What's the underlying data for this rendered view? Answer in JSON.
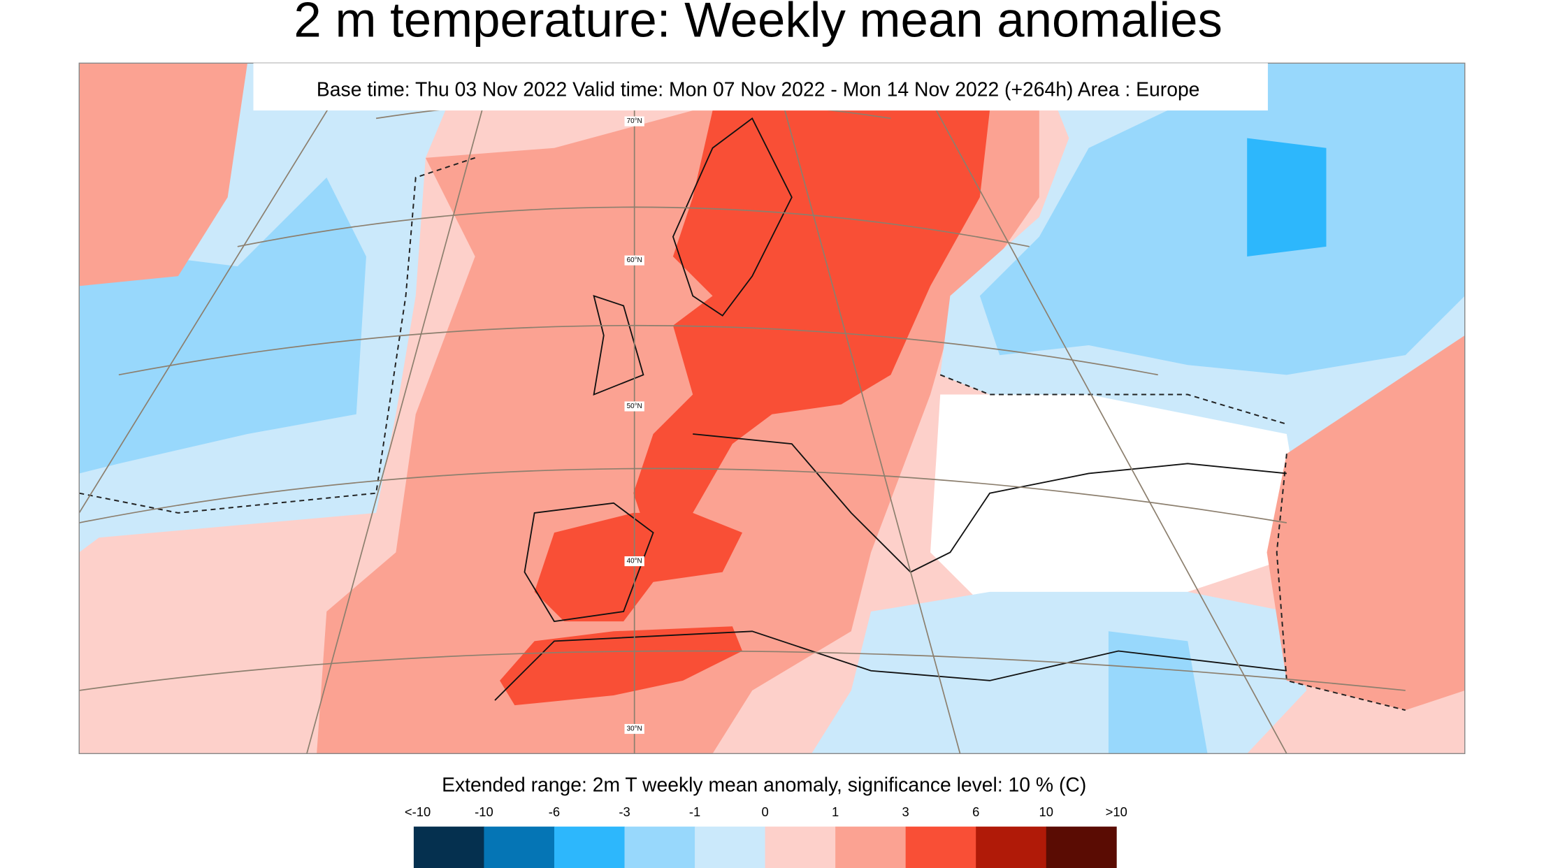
{
  "header": {
    "title": "2 m temperature: Weekly mean anomalies",
    "subtitle": "Base time: Thu 03 Nov 2022 Valid time: Mon 07 Nov 2022 - Mon 14 Nov 2022 (+264h) Area : Europe"
  },
  "map": {
    "lat_labels": [
      "70°N",
      "60°N",
      "50°N",
      "40°N",
      "30°N"
    ]
  },
  "legend": {
    "title": "Extended range: 2m T weekly mean anomaly, significance level: 10 % (C)",
    "labels": [
      "<-10",
      "-10",
      "-6",
      "-3",
      "-1",
      "0",
      "1",
      "3",
      "6",
      "10",
      ">10"
    ],
    "colors": [
      "#05304f",
      "#0575b5",
      "#2db7fc",
      "#98d8fc",
      "#cbe9fb",
      "#fdd0ca",
      "#fba292",
      "#f94f36",
      "#b01a08",
      "#5a0c03"
    ]
  }
}
